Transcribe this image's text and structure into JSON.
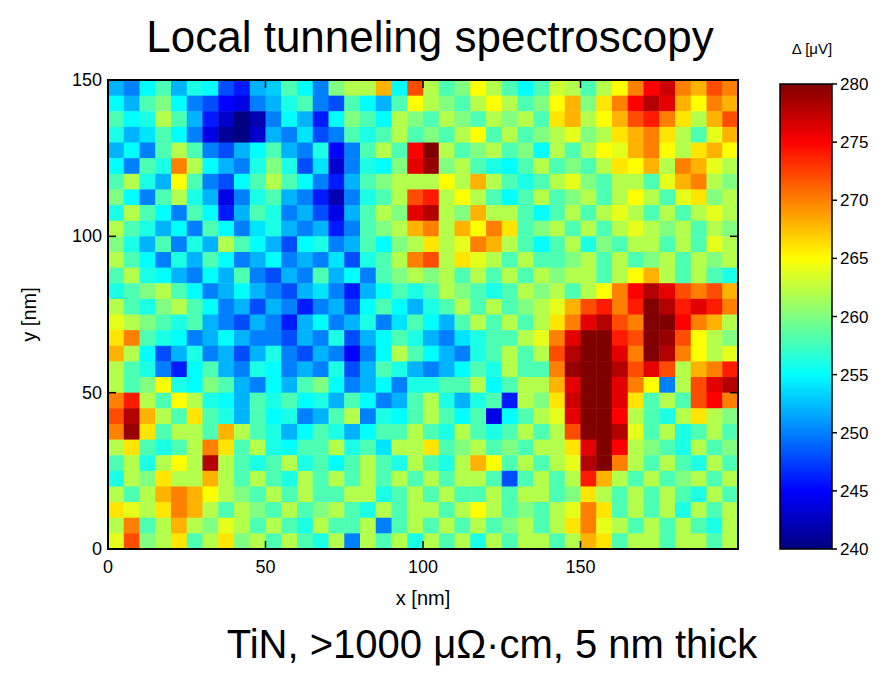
{
  "chart_data": {
    "type": "heatmap",
    "title": "Local tunneling spectroscopy",
    "caption": "TiN, >1000 μΩ·cm, 5 nm thick",
    "x_label": "x [nm]",
    "y_label": "y [nm]",
    "xlim": [
      0,
      200
    ],
    "ylim": [
      0,
      150
    ],
    "xticks": [
      0,
      50,
      100,
      150
    ],
    "yticks": [
      0,
      50,
      100,
      150
    ],
    "x": [
      2.5,
      7.5,
      12.5,
      17.5,
      22.5,
      27.5,
      32.5,
      37.5,
      42.5,
      47.5,
      52.5,
      57.5,
      62.5,
      67.5,
      72.5,
      77.5,
      82.5,
      87.5,
      92.5,
      97.5,
      102.5,
      107.5,
      112.5,
      117.5,
      122.5,
      127.5,
      132.5,
      137.5,
      142.5,
      147.5,
      152.5,
      157.5,
      162.5,
      167.5,
      172.5,
      177.5,
      182.5,
      187.5,
      192.5,
      197.5
    ],
    "y": [
      147.5,
      142.5,
      137.5,
      132.5,
      127.5,
      122.5,
      117.5,
      112.5,
      107.5,
      102.5,
      97.5,
      92.5,
      87.5,
      82.5,
      77.5,
      72.5,
      67.5,
      62.5,
      57.5,
      52.5,
      47.5,
      42.5,
      37.5,
      32.5,
      27.5,
      22.5,
      17.5,
      12.5,
      7.5,
      2.5
    ],
    "values": [
      [
        252,
        250,
        255,
        258,
        252,
        256,
        255,
        248,
        246,
        252,
        253,
        258,
        255,
        250,
        260,
        262,
        262,
        268,
        255,
        272,
        262,
        258,
        260,
        265,
        262,
        258,
        255,
        258,
        263,
        262,
        258,
        262,
        265,
        270,
        275,
        277,
        270,
        268,
        272,
        270
      ],
      [
        255,
        252,
        258,
        260,
        255,
        250,
        248,
        245,
        244,
        250,
        252,
        256,
        258,
        250,
        248,
        258,
        255,
        252,
        258,
        265,
        262,
        260,
        258,
        262,
        265,
        262,
        258,
        260,
        265,
        268,
        260,
        266,
        270,
        275,
        278,
        276,
        268,
        265,
        270,
        268
      ],
      [
        258,
        255,
        256,
        262,
        258,
        252,
        246,
        243,
        240,
        242,
        250,
        255,
        252,
        246,
        255,
        260,
        258,
        255,
        262,
        260,
        258,
        262,
        260,
        258,
        262,
        260,
        262,
        258,
        266,
        268,
        262,
        265,
        268,
        272,
        274,
        270,
        266,
        262,
        268,
        272
      ],
      [
        256,
        252,
        254,
        258,
        255,
        250,
        244,
        241,
        240,
        243,
        252,
        250,
        254,
        248,
        250,
        258,
        256,
        258,
        262,
        258,
        260,
        258,
        262,
        265,
        258,
        262,
        258,
        260,
        262,
        264,
        260,
        262,
        266,
        268,
        270,
        266,
        262,
        258,
        264,
        268
      ],
      [
        252,
        255,
        250,
        258,
        262,
        258,
        250,
        248,
        252,
        255,
        258,
        252,
        250,
        256,
        245,
        250,
        258,
        262,
        258,
        275,
        280,
        262,
        258,
        260,
        262,
        258,
        260,
        255,
        262,
        258,
        262,
        265,
        264,
        268,
        270,
        265,
        262,
        266,
        268,
        265
      ],
      [
        255,
        250,
        258,
        256,
        270,
        262,
        255,
        252,
        250,
        256,
        260,
        256,
        248,
        254,
        243,
        250,
        256,
        255,
        260,
        276,
        279,
        260,
        262,
        258,
        256,
        255,
        258,
        262,
        258,
        260,
        258,
        262,
        266,
        265,
        268,
        262,
        270,
        268,
        264,
        262
      ],
      [
        258,
        262,
        256,
        252,
        265,
        258,
        250,
        248,
        255,
        258,
        262,
        258,
        255,
        250,
        246,
        252,
        258,
        260,
        262,
        262,
        262,
        265,
        262,
        268,
        262,
        258,
        256,
        258,
        262,
        264,
        260,
        258,
        262,
        262,
        258,
        264,
        268,
        270,
        262,
        260
      ],
      [
        260,
        255,
        250,
        258,
        262,
        256,
        252,
        244,
        250,
        256,
        258,
        252,
        250,
        246,
        242,
        250,
        256,
        258,
        262,
        272,
        274,
        262,
        265,
        262,
        258,
        255,
        258,
        262,
        258,
        260,
        262,
        258,
        262,
        265,
        262,
        258,
        264,
        266,
        260,
        262
      ],
      [
        256,
        262,
        258,
        255,
        250,
        258,
        255,
        246,
        252,
        258,
        256,
        250,
        252,
        248,
        244,
        252,
        258,
        262,
        260,
        276,
        278,
        262,
        260,
        268,
        262,
        262,
        258,
        255,
        258,
        262,
        258,
        262,
        264,
        262,
        258,
        262,
        258,
        262,
        264,
        262
      ],
      [
        262,
        258,
        256,
        252,
        255,
        250,
        258,
        255,
        250,
        254,
        256,
        252,
        250,
        252,
        246,
        250,
        258,
        260,
        262,
        268,
        270,
        262,
        268,
        265,
        270,
        266,
        258,
        260,
        262,
        258,
        262,
        258,
        262,
        264,
        262,
        260,
        262,
        258,
        262,
        260
      ],
      [
        260,
        256,
        252,
        258,
        250,
        256,
        252,
        262,
        258,
        255,
        252,
        248,
        255,
        256,
        250,
        252,
        258,
        255,
        260,
        262,
        266,
        262,
        264,
        270,
        268,
        262,
        258,
        255,
        258,
        262,
        256,
        260,
        258,
        262,
        262,
        258,
        262,
        258,
        264,
        262
      ],
      [
        262,
        258,
        255,
        250,
        256,
        252,
        258,
        255,
        250,
        252,
        255,
        250,
        252,
        250,
        254,
        248,
        256,
        258,
        262,
        270,
        272,
        262,
        266,
        264,
        262,
        258,
        262,
        258,
        258,
        260,
        262,
        258,
        262,
        258,
        260,
        262,
        258,
        262,
        260,
        262
      ],
      [
        258,
        262,
        256,
        255,
        252,
        250,
        255,
        252,
        258,
        250,
        248,
        252,
        250,
        258,
        252,
        255,
        250,
        258,
        260,
        262,
        260,
        262,
        258,
        262,
        258,
        262,
        258,
        262,
        260,
        262,
        262,
        258,
        262,
        265,
        268,
        262,
        258,
        262,
        258,
        256
      ],
      [
        256,
        258,
        260,
        262,
        258,
        255,
        250,
        252,
        255,
        252,
        250,
        248,
        252,
        254,
        250,
        246,
        252,
        255,
        258,
        256,
        258,
        262,
        260,
        258,
        256,
        258,
        262,
        260,
        262,
        258,
        262,
        265,
        270,
        275,
        278,
        276,
        272,
        270,
        272,
        268
      ],
      [
        262,
        258,
        256,
        260,
        262,
        258,
        255,
        250,
        252,
        248,
        252,
        250,
        246,
        250,
        252,
        248,
        255,
        258,
        255,
        252,
        256,
        258,
        262,
        258,
        262,
        258,
        260,
        262,
        264,
        268,
        272,
        274,
        270,
        274,
        280,
        278,
        274,
        276,
        274,
        270
      ],
      [
        264,
        262,
        260,
        258,
        256,
        258,
        252,
        250,
        248,
        252,
        250,
        246,
        252,
        255,
        250,
        252,
        256,
        250,
        254,
        258,
        255,
        252,
        258,
        262,
        258,
        262,
        258,
        262,
        266,
        270,
        276,
        278,
        272,
        270,
        280,
        280,
        275,
        270,
        268,
        262
      ],
      [
        266,
        270,
        258,
        256,
        255,
        250,
        252,
        255,
        252,
        250,
        250,
        248,
        252,
        250,
        256,
        248,
        252,
        255,
        258,
        256,
        252,
        250,
        254,
        256,
        258,
        258,
        262,
        264,
        270,
        276,
        280,
        280,
        274,
        272,
        280,
        279,
        272,
        265,
        262,
        260
      ],
      [
        268,
        262,
        255,
        248,
        252,
        256,
        250,
        252,
        248,
        252,
        256,
        250,
        248,
        252,
        250,
        245,
        250,
        255,
        262,
        258,
        255,
        252,
        250,
        256,
        258,
        262,
        258,
        262,
        272,
        278,
        280,
        280,
        276,
        270,
        280,
        278,
        270,
        265,
        262,
        264
      ],
      [
        262,
        258,
        256,
        250,
        246,
        255,
        258,
        252,
        250,
        256,
        255,
        250,
        252,
        250,
        256,
        248,
        252,
        258,
        256,
        252,
        250,
        252,
        255,
        258,
        256,
        262,
        258,
        258,
        270,
        279,
        280,
        280,
        278,
        272,
        276,
        272,
        262,
        268,
        270,
        274
      ],
      [
        262,
        258,
        260,
        265,
        256,
        255,
        260,
        258,
        252,
        250,
        255,
        252,
        258,
        260,
        255,
        250,
        252,
        255,
        250,
        256,
        256,
        258,
        258,
        262,
        255,
        258,
        262,
        262,
        268,
        276,
        280,
        280,
        276,
        270,
        265,
        250,
        262,
        272,
        276,
        278
      ],
      [
        270,
        274,
        262,
        258,
        265,
        262,
        256,
        255,
        252,
        258,
        256,
        258,
        255,
        256,
        252,
        258,
        255,
        250,
        252,
        258,
        262,
        256,
        252,
        256,
        258,
        246,
        262,
        260,
        266,
        277,
        280,
        280,
        276,
        266,
        258,
        262,
        258,
        272,
        275,
        270
      ],
      [
        272,
        278,
        268,
        262,
        258,
        266,
        258,
        256,
        252,
        258,
        255,
        256,
        250,
        252,
        258,
        262,
        250,
        256,
        255,
        258,
        262,
        258,
        255,
        258,
        244,
        255,
        258,
        262,
        264,
        276,
        280,
        280,
        275,
        262,
        258,
        256,
        262,
        266,
        262,
        260
      ],
      [
        270,
        279,
        266,
        258,
        262,
        262,
        258,
        268,
        262,
        258,
        256,
        252,
        255,
        258,
        256,
        252,
        255,
        258,
        258,
        262,
        258,
        256,
        262,
        258,
        256,
        258,
        262,
        258,
        262,
        272,
        280,
        280,
        278,
        264,
        258,
        262,
        256,
        258,
        262,
        258
      ],
      [
        262,
        266,
        258,
        256,
        258,
        262,
        270,
        266,
        258,
        262,
        256,
        255,
        258,
        258,
        262,
        256,
        258,
        254,
        262,
        262,
        266,
        258,
        260,
        262,
        258,
        260,
        258,
        262,
        262,
        266,
        276,
        280,
        275,
        262,
        260,
        258,
        256,
        262,
        258,
        260
      ],
      [
        258,
        262,
        256,
        262,
        265,
        262,
        278,
        262,
        258,
        256,
        258,
        262,
        256,
        258,
        255,
        258,
        262,
        258,
        256,
        262,
        258,
        256,
        262,
        268,
        265,
        258,
        262,
        258,
        262,
        264,
        278,
        280,
        270,
        262,
        258,
        262,
        258,
        256,
        262,
        258
      ],
      [
        256,
        262,
        260,
        266,
        262,
        262,
        268,
        262,
        258,
        262,
        258,
        256,
        262,
        258,
        262,
        258,
        262,
        258,
        262,
        258,
        262,
        258,
        262,
        262,
        258,
        248,
        258,
        262,
        258,
        262,
        274,
        268,
        262,
        258,
        262,
        258,
        260,
        262,
        258,
        262
      ],
      [
        262,
        258,
        262,
        268,
        270,
        268,
        265,
        262,
        260,
        258,
        262,
        258,
        262,
        258,
        258,
        262,
        262,
        256,
        258,
        262,
        258,
        262,
        258,
        258,
        262,
        258,
        262,
        262,
        258,
        260,
        266,
        262,
        258,
        262,
        258,
        262,
        258,
        256,
        262,
        258
      ],
      [
        266,
        264,
        262,
        266,
        270,
        268,
        262,
        258,
        262,
        260,
        258,
        262,
        258,
        260,
        262,
        258,
        256,
        262,
        258,
        262,
        262,
        258,
        262,
        265,
        262,
        258,
        260,
        258,
        262,
        264,
        270,
        266,
        258,
        262,
        258,
        262,
        256,
        262,
        258,
        262
      ],
      [
        262,
        270,
        258,
        262,
        268,
        262,
        260,
        264,
        262,
        258,
        262,
        258,
        256,
        262,
        258,
        258,
        262,
        250,
        258,
        262,
        258,
        262,
        258,
        262,
        258,
        260,
        262,
        258,
        262,
        266,
        270,
        264,
        262,
        258,
        262,
        258,
        262,
        258,
        256,
        262
      ],
      [
        264,
        272,
        260,
        262,
        266,
        258,
        262,
        266,
        260,
        262,
        258,
        262,
        258,
        256,
        262,
        250,
        262,
        258,
        262,
        256,
        262,
        258,
        262,
        256,
        262,
        258,
        262,
        262,
        258,
        262,
        268,
        266,
        258,
        262,
        262,
        258,
        262,
        262,
        258,
        262
      ]
    ],
    "colorbar": {
      "label": "Δ [μV]",
      "range": [
        240,
        280
      ],
      "ticks": [
        240,
        245,
        250,
        255,
        260,
        265,
        270,
        275,
        280
      ]
    }
  }
}
